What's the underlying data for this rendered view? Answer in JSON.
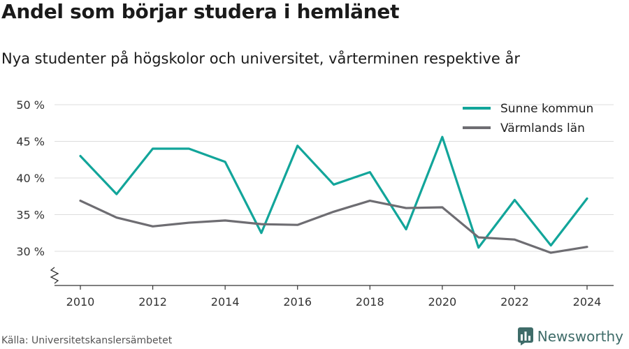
{
  "title": "Andel som börjar studera i hemlänet",
  "subtitle": "Nya studenter på högskolor och universitet, vårterminen respektive år",
  "source": "Källa: Universitetskanslersämbetet",
  "brand": "Newsworthy",
  "colors": {
    "series1": "#12a59a",
    "series2": "#6e6d72",
    "grid": "#dcdcdc",
    "brand": "#3f6c69"
  },
  "chart_data": {
    "type": "line",
    "x": [
      2010,
      2011,
      2012,
      2013,
      2014,
      2015,
      2016,
      2017,
      2018,
      2019,
      2020,
      2021,
      2022,
      2023,
      2024
    ],
    "xticks": [
      "2010",
      "2012",
      "2014",
      "2016",
      "2018",
      "2020",
      "2022",
      "2024"
    ],
    "yticks": [
      "30 %",
      "35 %",
      "40 %",
      "45 %",
      "50 %"
    ],
    "ylim": [
      25,
      50
    ],
    "grid": true,
    "legend_position": "top-right",
    "broken_axis": true,
    "series": [
      {
        "name": "Sunne kommun",
        "color": "#12a59a",
        "values": [
          43.0,
          37.8,
          44.0,
          44.0,
          42.2,
          32.5,
          44.4,
          39.1,
          40.8,
          33.0,
          45.6,
          30.5,
          37.0,
          30.8,
          37.2
        ]
      },
      {
        "name": "Värmlands län",
        "color": "#6e6d72",
        "values": [
          36.9,
          34.6,
          33.4,
          33.9,
          34.2,
          33.7,
          33.6,
          35.4,
          36.9,
          35.9,
          36.0,
          31.9,
          31.6,
          29.8,
          30.6
        ]
      }
    ]
  }
}
